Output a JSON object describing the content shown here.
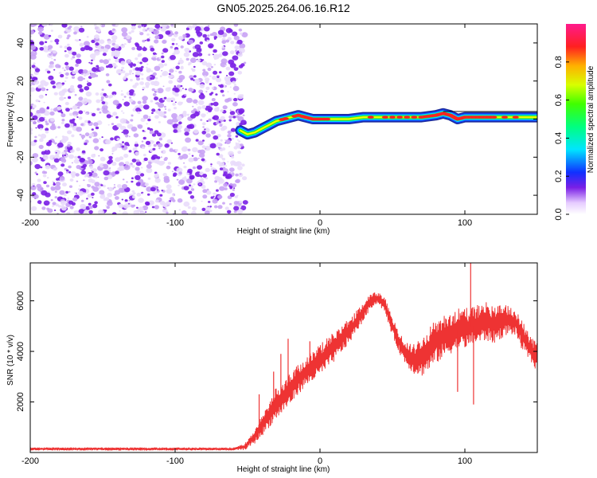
{
  "title": "GN05.2025.264.06.16.R12",
  "colors": {
    "speckle": "#7a1fe6",
    "speckle_light": "#c9a3f5",
    "snr_line": "#ee3333",
    "track_high": "#ff2222",
    "track_mid": "#22dd22",
    "track_low": "#1144ff"
  },
  "chart_data": [
    {
      "type": "heatmap",
      "xlabel": "Height of straight line (km)",
      "ylabel": "Frequency (Hz)",
      "xlim": [
        -200,
        150
      ],
      "ylim": [
        -50,
        50
      ],
      "xticks": [
        -200,
        -100,
        0,
        100
      ],
      "yticks": [
        -40,
        -20,
        0,
        20,
        40
      ],
      "noise_region_x": [
        -200,
        -53
      ],
      "track": {
        "x": [
          -55,
          -50,
          -45,
          -40,
          -35,
          -30,
          -25,
          -20,
          -15,
          -10,
          -5,
          0,
          10,
          20,
          30,
          50,
          70,
          80,
          85,
          90,
          95,
          100,
          110,
          120,
          150
        ],
        "freq": [
          -6,
          -8,
          -7,
          -5,
          -3,
          -1,
          0,
          1,
          2,
          1,
          0,
          0,
          0,
          0,
          1,
          1,
          1,
          2,
          3,
          2,
          0,
          1,
          1,
          1,
          1
        ],
        "amp": [
          0.5,
          0.6,
          0.5,
          0.6,
          0.55,
          0.6,
          0.7,
          0.75,
          0.7,
          0.8,
          0.9,
          0.95,
          0.6,
          0.5,
          0.55,
          0.9,
          0.95,
          0.9,
          0.85,
          0.8,
          0.9,
          0.85,
          0.9,
          0.85,
          0.6
        ]
      },
      "colorbar": {
        "label": "Normalized spectral amplitude",
        "range": [
          0,
          1
        ],
        "ticks": [
          0.0,
          0.2,
          0.4,
          0.6,
          0.8
        ],
        "tick_labels": [
          "0.0",
          "0.2",
          "0.4",
          "0.6",
          "0.8"
        ]
      }
    },
    {
      "type": "line",
      "xlabel": "Height of straight line (km)",
      "ylabel": "SNR (10 * v/v)",
      "xlim": [
        -200,
        150
      ],
      "ylim": [
        0,
        7500
      ],
      "xticks": [
        -200,
        -100,
        0,
        100
      ],
      "yticks": [
        2000,
        4000,
        6000
      ],
      "envelope": {
        "x": [
          -200,
          -150,
          -100,
          -60,
          -52,
          -45,
          -40,
          -35,
          -30,
          -25,
          -20,
          -15,
          -10,
          -5,
          0,
          10,
          20,
          30,
          35,
          40,
          45,
          50,
          55,
          60,
          65,
          70,
          75,
          80,
          85,
          90,
          95,
          100,
          105,
          110,
          115,
          120,
          125,
          130,
          135,
          140,
          145,
          150
        ],
        "lower": [
          80,
          80,
          80,
          80,
          100,
          350,
          650,
          1000,
          1300,
          1600,
          1900,
          2300,
          2600,
          2800,
          3000,
          3600,
          4300,
          5200,
          5700,
          5900,
          5500,
          4600,
          3900,
          3400,
          3100,
          3000,
          3200,
          3500,
          3700,
          3900,
          4000,
          4100,
          4200,
          4300,
          4400,
          4300,
          4500,
          4700,
          4600,
          4000,
          3600,
          3200
        ],
        "upper": [
          200,
          200,
          200,
          200,
          350,
          900,
          1500,
          2100,
          2600,
          2900,
          3200,
          3500,
          3800,
          4000,
          4300,
          4800,
          5300,
          5900,
          6300,
          6350,
          6100,
          5400,
          4700,
          4400,
          4300,
          4600,
          5000,
          5300,
          5500,
          5600,
          5700,
          5700,
          5800,
          5900,
          6000,
          5800,
          5900,
          5800,
          5700,
          5200,
          4600,
          4300
        ]
      },
      "spikes": [
        {
          "x": -42,
          "y": 2300
        },
        {
          "x": -32,
          "y": 3200
        },
        {
          "x": -27,
          "y": 3900
        },
        {
          "x": -22,
          "y": 4500
        },
        {
          "x": -7,
          "y": 4400
        },
        {
          "x": 95,
          "y": 2400
        },
        {
          "x": 104,
          "y": 7500
        },
        {
          "x": 106,
          "y": 1900
        }
      ]
    }
  ]
}
